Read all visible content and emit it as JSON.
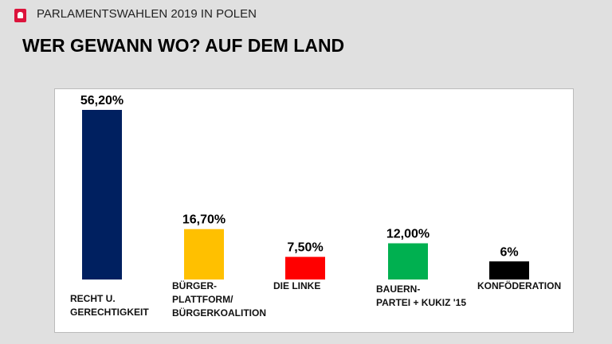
{
  "header": {
    "supertitle": "PARLAMENTSWAHLEN 2019 IN POLEN",
    "title": "WER GEWANN WO? AUF DEM LAND",
    "flag_icon": "poland-eagle-icon"
  },
  "chart_data": {
    "type": "bar",
    "categories": [
      "RECHT U.\nGERECHTIGKEIT",
      "BÜRGER-\nPLATTFORM/\nBÜRGERKOALITION",
      "DIE LINKE",
      "BAUERN-\nPARTEI + KUKIZ '15",
      "KONFÖDERATION"
    ],
    "values": [
      56.2,
      16.7,
      7.5,
      12.0,
      6
    ],
    "data_labels": [
      "56,20%",
      "16,70%",
      "7,50%",
      "12,00%",
      "6%"
    ],
    "colors": [
      "#002060",
      "#ffc000",
      "#ff0000",
      "#00b050",
      "#000000"
    ],
    "title": "",
    "xlabel": "",
    "ylabel": "",
    "ylim": [
      0,
      60
    ],
    "grid": false
  }
}
